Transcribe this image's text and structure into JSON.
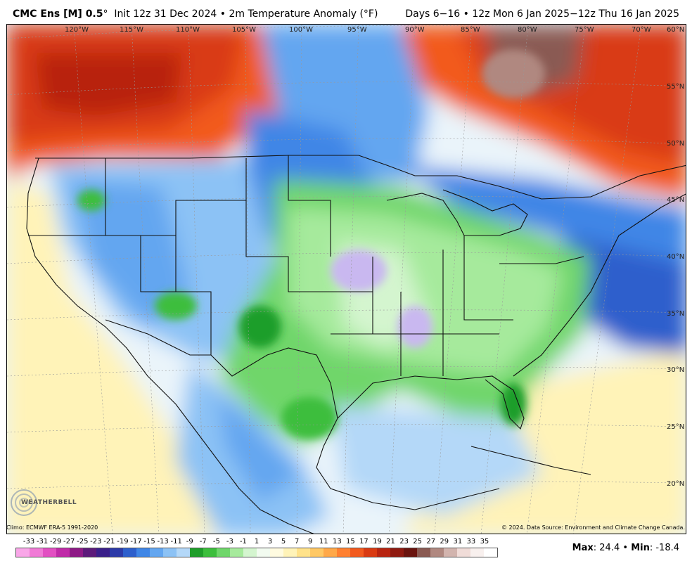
{
  "header": {
    "model": "CMC Ens [M] 0.5",
    "degree": "°",
    "init": "Init 12z 31 Dec 2024",
    "bullet": "•",
    "field": "2m Temperature Anomaly (°F)",
    "valid": "Days 6−16 • 12z Mon 6 Jan 2025−12z Thu 16 Jan 2025"
  },
  "map": {
    "lon_labels": [
      "120°W",
      "115°W",
      "110°W",
      "105°W",
      "100°W",
      "95°W",
      "90°W",
      "85°W",
      "80°W",
      "75°W",
      "70°W"
    ],
    "lat_labels": [
      "60°N",
      "55°N",
      "50°N",
      "45°N",
      "40°N",
      "35°N",
      "30°N",
      "25°N",
      "20°N"
    ]
  },
  "footer": {
    "climo": "Climo: ECMWF ERA-5 1991-2020",
    "copyright": "© 2024. Data Source: Environment and Climate Change Canada."
  },
  "logo": {
    "text": "WEATHERBELL"
  },
  "colorbar": {
    "ticks": [
      "-33",
      "-31",
      "-29",
      "-27",
      "-25",
      "-23",
      "-21",
      "-19",
      "-17",
      "-15",
      "-13",
      "-11",
      "-9",
      "-7",
      "-5",
      "-3",
      "-1",
      "1",
      "3",
      "5",
      "7",
      "9",
      "11",
      "13",
      "15",
      "17",
      "19",
      "21",
      "23",
      "25",
      "27",
      "29",
      "31",
      "33",
      "35"
    ],
    "colors": [
      "#f9a6e8",
      "#f07ad6",
      "#e24fc2",
      "#c02aa8",
      "#8e1a86",
      "#5c1a7a",
      "#3a1f8a",
      "#2c3aa8",
      "#2d5fcc",
      "#3f86e6",
      "#63a6f0",
      "#8cc2f5",
      "#b4d8f8",
      "#1f9e2a",
      "#3cbe3c",
      "#6fd66a",
      "#a6ea9c",
      "#d4f5cf",
      "#f2fbf0",
      "#fffbe0",
      "#fff3b8",
      "#ffe28a",
      "#ffc864",
      "#ffa848",
      "#ff8030",
      "#f25a1e",
      "#d93a12",
      "#b82410",
      "#8f1a10",
      "#6a140e",
      "#8a5a52",
      "#b08880",
      "#d2b4ae",
      "#f0dcd8",
      "#f8f0ee",
      "#ffffff"
    ]
  },
  "stats": {
    "max_label": "Max",
    "max_value": "24.4",
    "sep": "•",
    "min_label": "Min",
    "min_value": "-18.4"
  }
}
